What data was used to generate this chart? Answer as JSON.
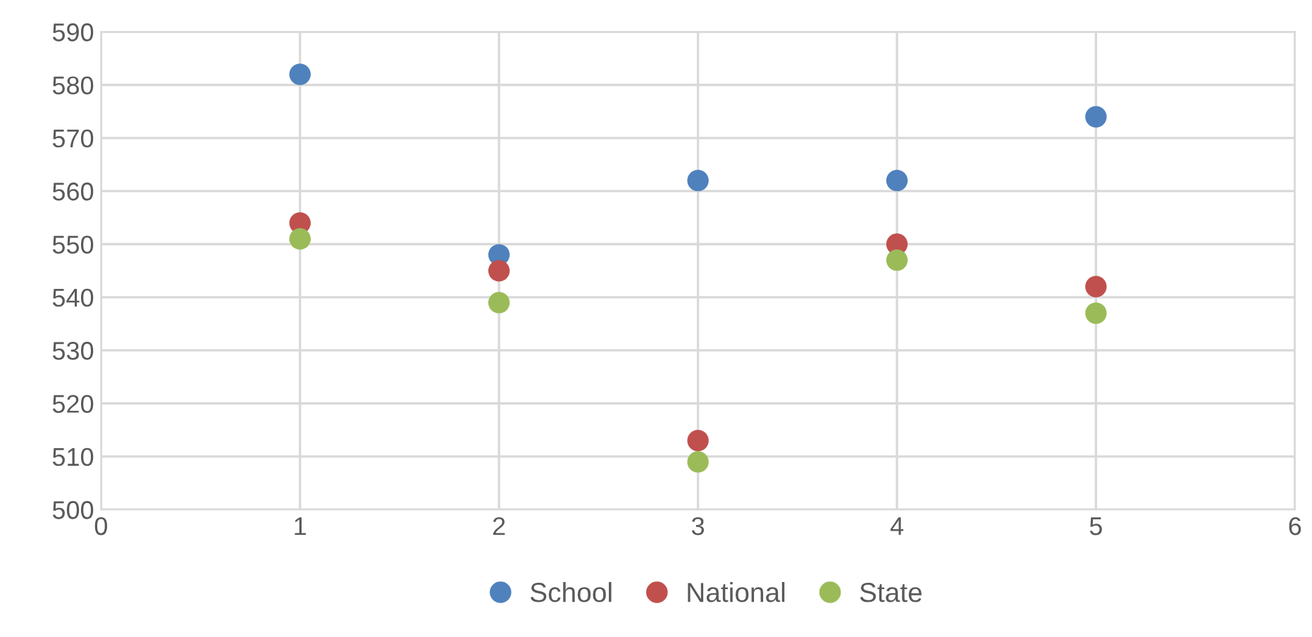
{
  "chart_data": {
    "type": "scatter",
    "x": [
      1,
      2,
      3,
      4,
      5
    ],
    "series": [
      {
        "name": "School",
        "color": "#4f81bd",
        "values": [
          582,
          548,
          562,
          562,
          574
        ]
      },
      {
        "name": "National",
        "color": "#c0504d",
        "values": [
          554,
          545,
          513,
          550,
          542
        ]
      },
      {
        "name": "State",
        "color": "#9bbb59",
        "values": [
          551,
          539,
          509,
          547,
          537
        ]
      }
    ],
    "xlim": [
      0,
      6
    ],
    "xticks": [
      0,
      1,
      2,
      3,
      4,
      5,
      6
    ],
    "ylim": [
      500,
      590
    ],
    "yticks": [
      500,
      510,
      520,
      530,
      540,
      550,
      560,
      570,
      580,
      590
    ],
    "grid": true,
    "legend": "bottom",
    "marker": "circle"
  }
}
